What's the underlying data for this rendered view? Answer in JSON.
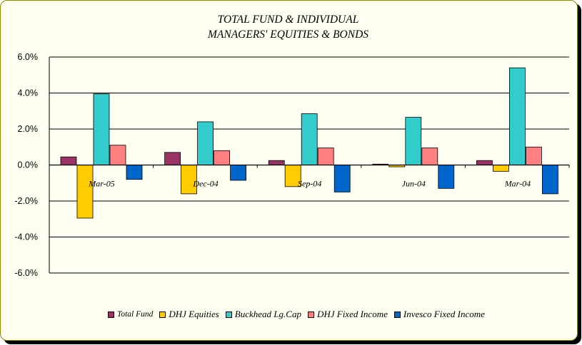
{
  "title_line1": "TOTAL FUND  & INDIVIDUAL",
  "title_line2": "MANAGERS' EQUITIES & BONDS",
  "chart_data": {
    "type": "bar",
    "title": "TOTAL FUND  & INDIVIDUAL MANAGERS' EQUITIES & BONDS",
    "categories": [
      "Mar-05",
      "Dec-04",
      "Sep-04",
      "Jun-04",
      "Mar-04"
    ],
    "series": [
      {
        "name": "Total Fund",
        "color": "#993366",
        "values": [
          0.45,
          0.7,
          0.25,
          0.05,
          0.25
        ]
      },
      {
        "name": "DHJ Equities",
        "color": "#ffcc00",
        "values": [
          -2.95,
          -1.6,
          -1.2,
          -0.1,
          -0.35
        ]
      },
      {
        "name": "Buckhead Lg.Cap",
        "color": "#33cccc",
        "values": [
          3.95,
          2.4,
          2.85,
          2.65,
          5.4
        ]
      },
      {
        "name": "DHJ Fixed Income",
        "color": "#ff8080",
        "values": [
          1.1,
          0.8,
          0.95,
          0.95,
          1.0
        ]
      },
      {
        "name": "Invesco Fixed Income",
        "color": "#0066cc",
        "values": [
          -0.8,
          -0.85,
          -1.5,
          -1.3,
          -1.6
        ]
      }
    ],
    "ylim": [
      -6.0,
      6.0
    ],
    "yticks": [
      "6.0%",
      "4.0%",
      "2.0%",
      "0.0%",
      "-2.0%",
      "-4.0%",
      "-6.0%"
    ],
    "ytick_values": [
      6,
      4,
      2,
      0,
      -2,
      -4,
      -6
    ],
    "grid": true,
    "legend_position": "bottom",
    "xlabel": "",
    "ylabel": ""
  }
}
